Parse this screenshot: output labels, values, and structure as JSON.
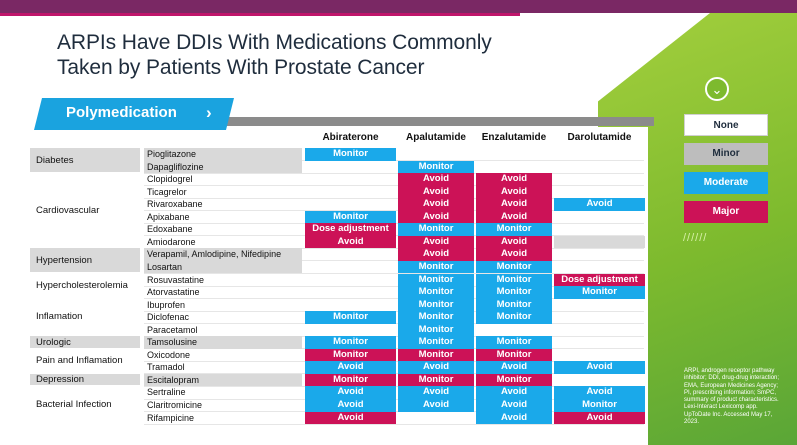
{
  "slide": {
    "title_line1": "ARPIs Have DDIs With Medications Commonly",
    "title_line2": "Taken by Patients With Prostate Cancer",
    "tag_label": "Polymedication",
    "tag_chevron": "›"
  },
  "columns": [
    "Abiraterone",
    "Apalutamide",
    "Enzalutamide",
    "Darolutamide"
  ],
  "categories": [
    {
      "label": "Diabetes",
      "shade": true
    },
    {
      "label": "Cardiovascular",
      "shade": false
    },
    {
      "label": "Hypertension",
      "shade": true
    },
    {
      "label": "Hypercholesterolemia",
      "shade": false
    },
    {
      "label": "Inflamation",
      "shade": false
    },
    {
      "label": "Urologic",
      "shade": true
    },
    {
      "label": "Pain and Inflamation",
      "shade": false
    },
    {
      "label": "Depression",
      "shade": true
    },
    {
      "label": "Bacterial Infection",
      "shade": false
    }
  ],
  "rows": [
    {
      "drug": "Pioglitazone",
      "cells": [
        [
          "Monitor",
          "mod"
        ],
        [
          "",
          ""
        ],
        [
          "",
          ""
        ],
        [
          "",
          ""
        ]
      ]
    },
    {
      "drug": "Dapagliflozine",
      "cells": [
        [
          "",
          ""
        ],
        [
          "Monitor",
          "mod"
        ],
        [
          "",
          ""
        ],
        [
          "",
          ""
        ]
      ]
    },
    {
      "drug": "Clopidogrel",
      "cells": [
        [
          "",
          ""
        ],
        [
          "Avoid",
          "maj"
        ],
        [
          "Avoid",
          "maj"
        ],
        [
          "",
          ""
        ]
      ]
    },
    {
      "drug": "Ticagrelor",
      "cells": [
        [
          "",
          ""
        ],
        [
          "Avoid",
          "maj"
        ],
        [
          "Avoid",
          "maj"
        ],
        [
          "",
          ""
        ]
      ]
    },
    {
      "drug": "Rivaroxabane",
      "cells": [
        [
          "",
          ""
        ],
        [
          "Avoid",
          "maj"
        ],
        [
          "Avoid",
          "maj"
        ],
        [
          "Avoid",
          "mod"
        ]
      ]
    },
    {
      "drug": "Apixabane",
      "cells": [
        [
          "Monitor",
          "mod"
        ],
        [
          "Avoid",
          "maj"
        ],
        [
          "Avoid",
          "maj"
        ],
        [
          "",
          ""
        ]
      ]
    },
    {
      "drug": "Edoxabane",
      "cells": [
        [
          "Dose adjustment",
          "maj"
        ],
        [
          "Monitor",
          "mod"
        ],
        [
          "Monitor",
          "mod"
        ],
        [
          "",
          ""
        ]
      ]
    },
    {
      "drug": "Amiodarone",
      "cells": [
        [
          "Avoid",
          "maj"
        ],
        [
          "Avoid",
          "maj"
        ],
        [
          "Avoid",
          "maj"
        ],
        [
          "",
          "minor"
        ]
      ]
    },
    {
      "drug": "Verapamil, Amlodipine, Nifedipine",
      "cells": [
        [
          "",
          ""
        ],
        [
          "Avoid",
          "maj"
        ],
        [
          "Avoid",
          "maj"
        ],
        [
          "",
          ""
        ]
      ]
    },
    {
      "drug": "Losartan",
      "cells": [
        [
          "",
          ""
        ],
        [
          "Monitor",
          "mod"
        ],
        [
          "Monitor",
          "mod"
        ],
        [
          "",
          ""
        ]
      ]
    },
    {
      "drug": "Rosuvastatine",
      "cells": [
        [
          "",
          ""
        ],
        [
          "Monitor",
          "mod"
        ],
        [
          "Monitor",
          "mod"
        ],
        [
          "Dose adjustment",
          "maj"
        ]
      ]
    },
    {
      "drug": "Atorvastatine",
      "cells": [
        [
          "",
          ""
        ],
        [
          "Monitor",
          "mod"
        ],
        [
          "Monitor",
          "mod"
        ],
        [
          "Monitor",
          "mod"
        ]
      ]
    },
    {
      "drug": "Ibuprofen",
      "cells": [
        [
          "",
          ""
        ],
        [
          "Monitor",
          "mod"
        ],
        [
          "Monitor",
          "mod"
        ],
        [
          "",
          ""
        ]
      ]
    },
    {
      "drug": "Diclofenac",
      "cells": [
        [
          "Monitor",
          "mod"
        ],
        [
          "Monitor",
          "mod"
        ],
        [
          "Monitor",
          "mod"
        ],
        [
          "",
          ""
        ]
      ]
    },
    {
      "drug": "Paracetamol",
      "cells": [
        [
          "",
          ""
        ],
        [
          "Monitor",
          "mod"
        ],
        [
          "",
          ""
        ],
        [
          "",
          ""
        ]
      ]
    },
    {
      "drug": "Tamsolusine",
      "cells": [
        [
          "Monitor",
          "mod"
        ],
        [
          "Monitor",
          "mod"
        ],
        [
          "Monitor",
          "mod"
        ],
        [
          "",
          ""
        ]
      ]
    },
    {
      "drug": "Oxicodone",
      "cells": [
        [
          "Monitor",
          "maj"
        ],
        [
          "Monitor",
          "maj"
        ],
        [
          "Monitor",
          "maj"
        ],
        [
          "",
          ""
        ]
      ]
    },
    {
      "drug": "Tramadol",
      "cells": [
        [
          "Avoid",
          "mod"
        ],
        [
          "Avoid",
          "mod"
        ],
        [
          "Avoid",
          "mod"
        ],
        [
          "Avoid",
          "mod"
        ]
      ]
    },
    {
      "drug": "Escitalopram",
      "cells": [
        [
          "Monitor",
          "maj"
        ],
        [
          "Monitor",
          "maj"
        ],
        [
          "Monitor",
          "maj"
        ],
        [
          "",
          ""
        ]
      ]
    },
    {
      "drug": "Sertraline",
      "cells": [
        [
          "Avoid",
          "mod"
        ],
        [
          "Avoid",
          "mod"
        ],
        [
          "Avoid",
          "mod"
        ],
        [
          "Avoid",
          "mod"
        ]
      ]
    },
    {
      "drug": "Claritromicine",
      "cells": [
        [
          "Avoid",
          "mod"
        ],
        [
          "Avoid",
          "mod"
        ],
        [
          "Avoid",
          "mod"
        ],
        [
          "Monitor",
          "mod"
        ]
      ]
    },
    {
      "drug": "Rifampicine",
      "cells": [
        [
          "Avoid",
          "maj"
        ],
        [
          "",
          ""
        ],
        [
          "Avoid",
          "mod"
        ],
        [
          "Avoid",
          "maj"
        ]
      ]
    }
  ],
  "legend": [
    {
      "label": "None",
      "kind": "none"
    },
    {
      "label": "Minor",
      "kind": "minor"
    },
    {
      "label": "Moderate",
      "kind": "mod"
    },
    {
      "label": "Major",
      "kind": "maj"
    }
  ],
  "hatch": "//////",
  "footnote": "ARPI, androgen receptor pathway inhibitor; DDI, drug-drug interaction; EMA, European Medicines Agency; PI, prescribing information; SmPC, summary of product characteristics. Lexi-Interact Lexicomp app. UpToDate Inc. Accessed May 17, 2023."
}
